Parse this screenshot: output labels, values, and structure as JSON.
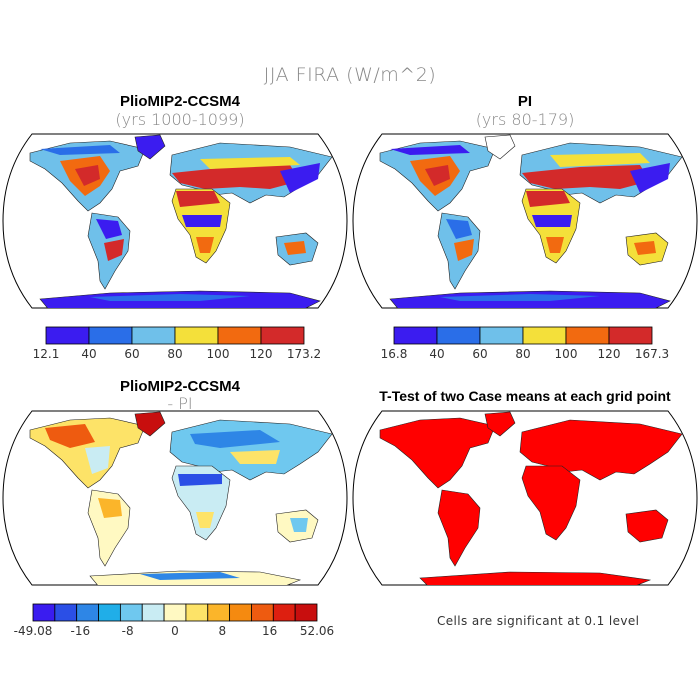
{
  "title": "JJA FIRA (W/m^2)",
  "panels": [
    {
      "id": "a",
      "title": "PlioMIP2-CCSM4",
      "subtitle": "(yrs 1000-1099)",
      "colorbar": {
        "labels": [
          "12.1",
          "40",
          "60",
          "80",
          "100",
          "120",
          "173.2"
        ],
        "colors": [
          "#3b1cf0",
          "#2a6ee8",
          "#6fc0ea",
          "#f4e03a",
          "#f26a10",
          "#d32a2a"
        ]
      }
    },
    {
      "id": "b",
      "title": "PI",
      "subtitle": "(yrs 80-179)",
      "colorbar": {
        "labels": [
          "16.8",
          "40",
          "60",
          "80",
          "100",
          "120",
          "167.3"
        ],
        "colors": [
          "#3b1cf0",
          "#2a6ee8",
          "#6fc0ea",
          "#f4e03a",
          "#f26a10",
          "#d32a2a"
        ]
      }
    },
    {
      "id": "c",
      "title": "PlioMIP2-CCSM4",
      "subtitle": "- PI",
      "colorbar": {
        "labels": [
          "-49.08",
          "-16",
          "-8",
          "0",
          "8",
          "16",
          "52.06"
        ],
        "colors": [
          "#3a1cf0",
          "#2b4fe6",
          "#2e86e6",
          "#20aee8",
          "#6fc8ef",
          "#c9ecf3",
          "#fff9c2",
          "#fde368",
          "#fbb52a",
          "#f58a10",
          "#ee5b10",
          "#dd1f10",
          "#c80e0e"
        ]
      }
    },
    {
      "id": "d",
      "title": "T-Test of two Case means at each grid point",
      "note": "Cells are significant at 0.1 level"
    }
  ]
}
